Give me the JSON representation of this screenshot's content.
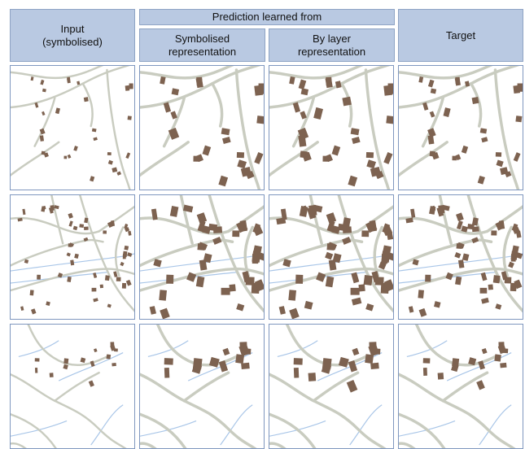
{
  "headers": {
    "input": "Input\n(symbolised)",
    "group": "Prediction learned from",
    "symbolised": "Symbolised\nrepresentation",
    "by_layer": "By layer\nrepresentation",
    "target": "Target"
  },
  "colors": {
    "header_fill": "#b9c9e2",
    "road": "#c9ccc0",
    "building": "#7d6250",
    "water": "#a9c6e8",
    "tile_border": "#7f97bf"
  }
}
